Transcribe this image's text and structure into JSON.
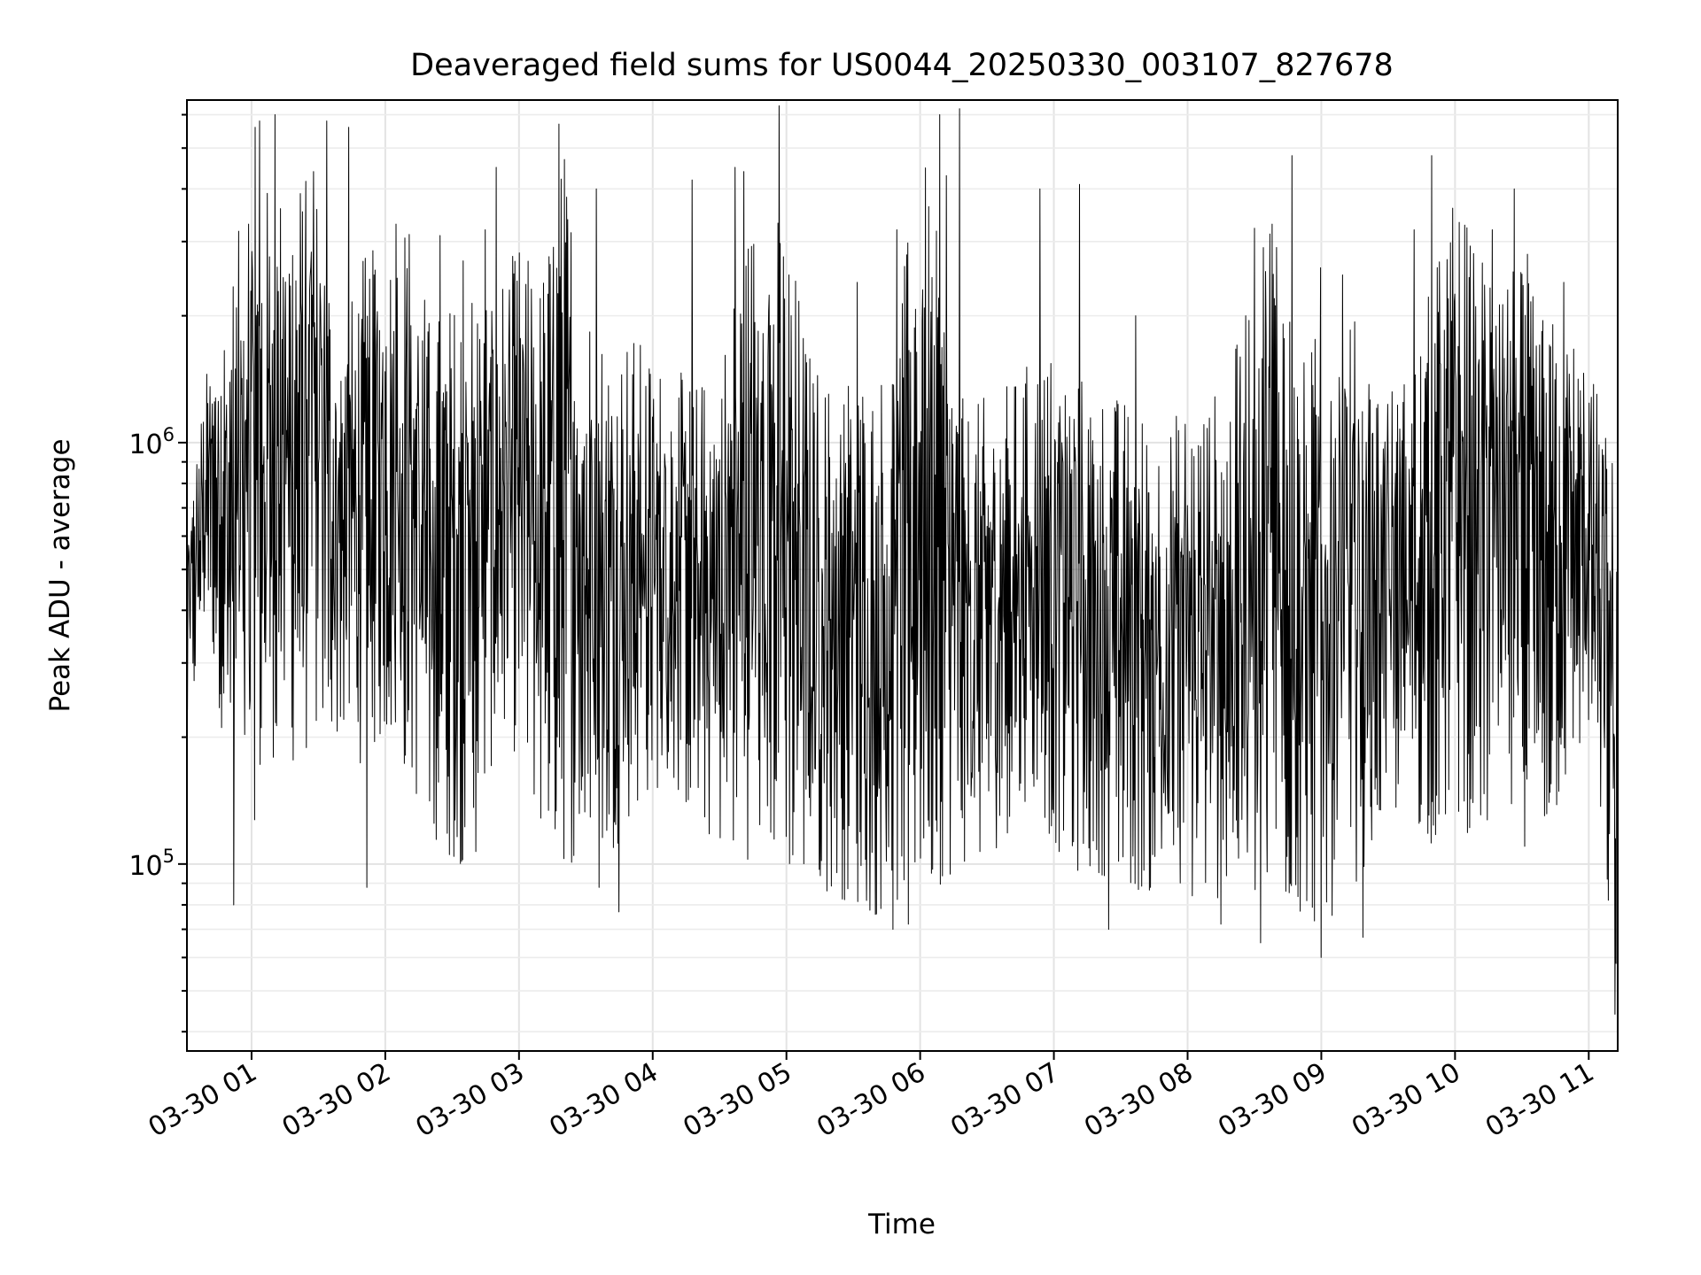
{
  "chart_data": {
    "type": "line",
    "title": "Deaveraged field sums for US0044_20250330_003107_827678",
    "xlabel": "Time",
    "ylabel": "Peak ADU - average",
    "yscale": "log",
    "xlim": [
      "2025-03-30 00:31",
      "2025-03-30 11:13"
    ],
    "ylim": [
      36000,
      6500000
    ],
    "grid": "major and minor",
    "x_tick_labels": [
      "03-30 01",
      "03-30 02",
      "03-30 03",
      "03-30 04",
      "03-30 05",
      "03-30 06",
      "03-30 07",
      "03-30 08",
      "03-30 09",
      "03-30 10",
      "03-30 11"
    ],
    "y_tick_labels": [
      {
        "base": "10",
        "exp": "5",
        "value": 100000
      },
      {
        "base": "10",
        "exp": "6",
        "value": 1000000
      }
    ],
    "series": [
      {
        "color": "#000000",
        "x": [
          "00:31",
          "00:40",
          "00:50",
          "01:00",
          "01:10",
          "01:20",
          "01:30",
          "01:40",
          "01:50",
          "02:00",
          "02:10",
          "02:20",
          "02:30",
          "02:40",
          "02:50",
          "03:00",
          "03:10",
          "03:20",
          "03:30",
          "03:40",
          "03:50",
          "04:00",
          "04:10",
          "04:20",
          "04:30",
          "04:40",
          "04:50",
          "05:00",
          "05:10",
          "05:20",
          "05:30",
          "05:40",
          "05:50",
          "06:00",
          "06:10",
          "06:20",
          "06:30",
          "06:40",
          "06:50",
          "07:00",
          "07:10",
          "07:20",
          "07:30",
          "07:40",
          "07:50",
          "08:00",
          "08:10",
          "08:20",
          "08:30",
          "08:40",
          "08:50",
          "09:00",
          "09:10",
          "09:20",
          "09:30",
          "09:40",
          "09:50",
          "10:00",
          "10:10",
          "10:20",
          "10:30",
          "10:40",
          "10:50",
          "11:00",
          "11:13"
        ],
        "low": [
          180000,
          400000,
          150000,
          120000,
          180000,
          170000,
          200000,
          200000,
          170000,
          200000,
          160000,
          120000,
          100000,
          100000,
          200000,
          180000,
          120000,
          100000,
          100000,
          100000,
          130000,
          150000,
          150000,
          120000,
          110000,
          100000,
          110000,
          95000,
          90000,
          85000,
          80000,
          75000,
          80000,
          85000,
          90000,
          100000,
          100000,
          120000,
          150000,
          110000,
          95000,
          95000,
          90000,
          85000,
          85000,
          80000,
          80000,
          80000,
          75000,
          75000,
          75000,
          70000,
          80000,
          100000,
          130000,
          130000,
          110000,
          130000,
          110000,
          120000,
          110000,
          110000,
          150000,
          200000,
          45000
        ],
        "high": [
          650000,
          1500000,
          2500000,
          4500000,
          4000000,
          4500000,
          4200000,
          1800000,
          2800000,
          3000000,
          3800000,
          2000000,
          2200000,
          2600000,
          2400000,
          3000000,
          2500000,
          5200000,
          2400000,
          1800000,
          1900000,
          1600000,
          1500000,
          1400000,
          1600000,
          3000000,
          4300000,
          3500000,
          1700000,
          1400000,
          1600000,
          1400000,
          2000000,
          5500000,
          2600000,
          1200000,
          1300000,
          1400000,
          1600000,
          1700000,
          1500000,
          1400000,
          1300000,
          1200000,
          1100000,
          1300000,
          1300000,
          1500000,
          3300000,
          4500000,
          1500000,
          2000000,
          2200000,
          1800000,
          1400000,
          1500000,
          2500000,
          4200000,
          2800000,
          3800000,
          2600000,
          2000000,
          2000000,
          1600000,
          850000
        ],
        "spikes": [
          {
            "x": "00:59",
            "y": 3300000
          },
          {
            "x": "01:02",
            "y": 5600000
          },
          {
            "x": "01:04",
            "y": 5800000
          },
          {
            "x": "01:11",
            "y": 6000000
          },
          {
            "x": "01:28",
            "y": 4400000
          },
          {
            "x": "01:34",
            "y": 5800000
          },
          {
            "x": "01:44",
            "y": 5600000
          },
          {
            "x": "01:55",
            "y": 2500000
          },
          {
            "x": "02:05",
            "y": 3300000
          },
          {
            "x": "02:25",
            "y": 3100000
          },
          {
            "x": "02:35",
            "y": 2700000
          },
          {
            "x": "02:45",
            "y": 3200000
          },
          {
            "x": "02:50",
            "y": 4500000
          },
          {
            "x": "03:18",
            "y": 5700000
          },
          {
            "x": "03:35",
            "y": 4000000
          },
          {
            "x": "04:18",
            "y": 4200000
          },
          {
            "x": "04:37",
            "y": 4500000
          },
          {
            "x": "04:41",
            "y": 4400000
          },
          {
            "x": "04:57",
            "y": 6300000
          },
          {
            "x": "05:32",
            "y": 2400000
          },
          {
            "x": "05:50",
            "y": 3200000
          },
          {
            "x": "06:09",
            "y": 6000000
          },
          {
            "x": "06:12",
            "y": 4300000
          },
          {
            "x": "06:18",
            "y": 6200000
          },
          {
            "x": "06:54",
            "y": 4000000
          },
          {
            "x": "07:12",
            "y": 4100000
          },
          {
            "x": "07:37",
            "y": 2000000
          },
          {
            "x": "08:38",
            "y": 3300000
          },
          {
            "x": "08:47",
            "y": 4800000
          },
          {
            "x": "09:00",
            "y": 2600000
          },
          {
            "x": "09:10",
            "y": 2500000
          },
          {
            "x": "09:42",
            "y": 3200000
          },
          {
            "x": "09:50",
            "y": 4800000
          },
          {
            "x": "10:17",
            "y": 3200000
          },
          {
            "x": "10:27",
            "y": 4000000
          },
          {
            "x": "10:33",
            "y": 2800000
          },
          {
            "x": "10:49",
            "y": 2400000
          }
        ],
        "dips": [
          {
            "x": "00:52",
            "y": 80000
          },
          {
            "x": "01:52",
            "y": 88000
          },
          {
            "x": "03:36",
            "y": 88000
          },
          {
            "x": "03:45",
            "y": 77000
          },
          {
            "x": "05:48",
            "y": 70000
          },
          {
            "x": "05:55",
            "y": 72000
          },
          {
            "x": "07:25",
            "y": 70000
          },
          {
            "x": "08:15",
            "y": 72000
          },
          {
            "x": "08:33",
            "y": 65000
          },
          {
            "x": "09:00",
            "y": 60000
          },
          {
            "x": "09:19",
            "y": 67000
          },
          {
            "x": "11:12",
            "y": 44000
          }
        ]
      }
    ]
  }
}
